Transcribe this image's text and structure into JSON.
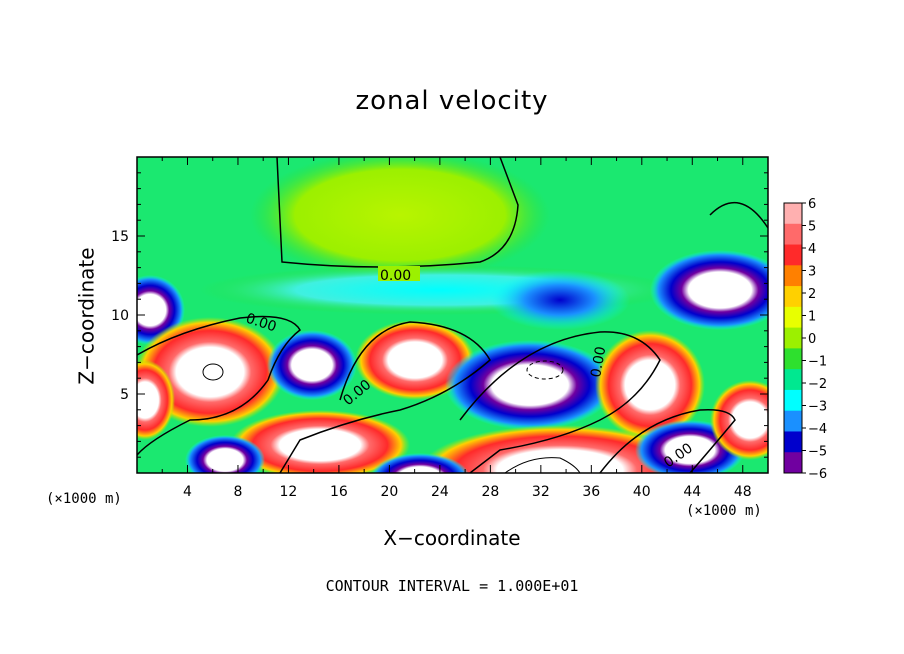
{
  "chart_data": {
    "type": "heatmap",
    "title": "zonal velocity",
    "xlabel": "X−coordinate",
    "ylabel": "Z−coordinate",
    "x_unit_label": "(×1000 m)",
    "x_unit_label_right": "(×1000 m)",
    "xlim": [
      0,
      50
    ],
    "ylim": [
      0,
      20
    ],
    "x_ticks": [
      4,
      8,
      12,
      16,
      20,
      24,
      28,
      32,
      36,
      40,
      44,
      48
    ],
    "x_tick_labels": [
      "4",
      "8",
      "12",
      "16",
      "20",
      "24",
      "28",
      "32",
      "36",
      "40",
      "44",
      "48"
    ],
    "y_ticks": [
      5,
      10,
      15
    ],
    "y_tick_labels": [
      "5",
      "10",
      "15"
    ],
    "colorbar": {
      "min": -6,
      "max": 6,
      "labels": [
        "6",
        "5",
        "4",
        "3",
        "2",
        "1",
        "0",
        "−1",
        "−2",
        "−3",
        "−4",
        "−5",
        "−6"
      ],
      "colors": [
        "#ffb0b0",
        "#ff6a6a",
        "#ff2a2a",
        "#ff8000",
        "#ffd000",
        "#e8ff00",
        "#9cf000",
        "#2ee02e",
        "#00e890",
        "#00ffff",
        "#1a90ff",
        "#0000cc",
        "#7000a0"
      ]
    },
    "contour_labels": [
      "0.00",
      "0.00",
      "0.00",
      "0.00",
      "0.00"
    ],
    "footer": "CONTOUR INTERVAL = 1.000E+01",
    "grid": false
  },
  "colors": {
    "background_field": "#17e86a",
    "saturated": "#ffffff"
  }
}
